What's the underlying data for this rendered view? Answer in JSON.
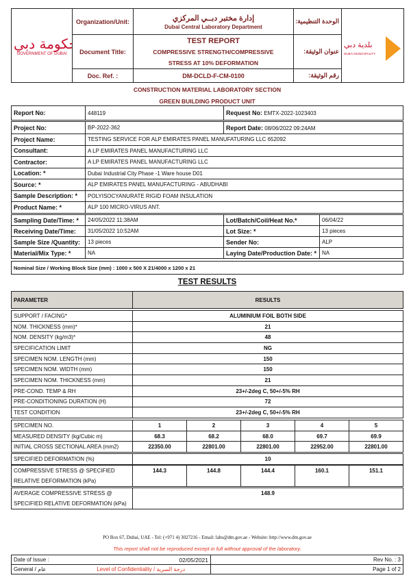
{
  "header": {
    "gov_logo_text": "GOVERNMENT OF DUBAI",
    "dm_logo_ar": "بلدية دبي",
    "dm_logo_en": "DUBAI MUNICIPALITY",
    "org_label": "Organization/Unit:",
    "org_ar": "إدارة مختبر دبــي المركزي",
    "org_en": "Dubai Central Laboratory Department",
    "org_label_ar": "الوحدة التنظيمية:",
    "title_label": "Document Title:",
    "title_main": "TEST REPORT",
    "title_sub1": "COMPRESSIVE STRENGTH/COMPRESSIVE",
    "title_sub2": "STRESS AT 10% DEFORMATION",
    "title_label_ar": "عنوان الوثيقة:",
    "ref_label": "Doc. Ref. :",
    "ref_value": "DM-DCLD-F-CM-0100",
    "ref_label_ar": "رقم الوثيقة:"
  },
  "section": {
    "line1": "CONSTRUCTION MATERIAL LABORATORY SECTION",
    "line2": "GREEN BUILDING PRODUCT UNIT"
  },
  "info": {
    "report_no_label": "Report No:",
    "report_no": "448119",
    "request_no_label": "Request No:",
    "request_no": "EMTX-2022-1023403",
    "project_no_label": "Project No:",
    "project_no": "BP-2022-362",
    "report_date_label": "Report Date:",
    "report_date": "08/06/2022  09:24AM",
    "rows": [
      {
        "label": "Project Name:",
        "value": "TESTING SERVICE FOR ALP EMIRATES PANEL MANUFATURING LLC 652092"
      },
      {
        "label": "Consultant:",
        "value": "A LP EMIRATES PANEL MANUFACTURING LLC"
      },
      {
        "label": "Contractor:",
        "value": "A LP EMIRATES PANEL MANUFACTURING LLC"
      },
      {
        "label": "Location: *",
        "value": "Dubai Industrial City Phase -1 Ware house D01"
      },
      {
        "label": "Source: *",
        "value": "ALP EMIRATES PANEL MANUFACTURING - ABUDHABI"
      },
      {
        "label": "Sample Description: *",
        "value": "POLYISOCYANURATE RIGID FOAM INSULATION"
      },
      {
        "label": "Product Name: *",
        "value": "ALP 100 MICRO-VIRUS ANT."
      }
    ],
    "grid": [
      {
        "l1": "Sampling Date/Time: *",
        "v1": "24/05/2022  11:38AM",
        "l2": "Lot/Batch/Coil/Heat No.*",
        "v2": "06/04/22"
      },
      {
        "l1": "Receiving Date/Time:",
        "v1": "31/05/2022  10:52AM",
        "l2": "Lot Size: *",
        "v2": "13 pieces"
      },
      {
        "l1": "Sample Size /Quantity:",
        "v1": "13 pieces",
        "l2": "Sender No:",
        "v2": "ALP"
      },
      {
        "l1": "Material/Mix Type: *",
        "v1": "NA",
        "l2": "Laying Date/Production Date: *",
        "v2": "NA"
      }
    ],
    "nominal": "Nominal Size / Working Block Size (mm) : 1000 x 500 X 21/4000 x 1200 x 21"
  },
  "results": {
    "title": "TEST RESULTS",
    "param_header": "PARAMETER",
    "results_header": "RESULTS",
    "rows": [
      {
        "p": "SUPPORT / FACING*",
        "v": "ALUMINIUM FOIL BOTH SIDE"
      },
      {
        "p": "NOM. THICKNESS (mm)*",
        "v": "21"
      },
      {
        "p": "NOM. DENSITY (kg/m3)*",
        "v": "48"
      },
      {
        "p": "SPECIFICATION LIMIT",
        "v": "NG"
      },
      {
        "p": "SPECIMEN NOM. LENGTH (mm)",
        "v": "150"
      },
      {
        "p": "SPECIMEN NOM. WIDTH (mm)",
        "v": "150"
      },
      {
        "p": "SPECIMEN NOM. THICKNESS (mm)",
        "v": "21"
      },
      {
        "p": "PRE-COND. TEMP & RH",
        "v": "23+/-2deg C, 50+/-5% RH"
      },
      {
        "p": "PRE-CONDITIONING DURATION (H)",
        "v": "72"
      },
      {
        "p": "TEST CONDITION",
        "v": "23+/-2deg C, 50+/-5% RH"
      }
    ],
    "specimen": [
      {
        "p": "SPECIMEN NO.",
        "v": [
          "1",
          "2",
          "3",
          "4",
          "5"
        ]
      },
      {
        "p": "MEASURED DENSITY (kg/Cubic m)",
        "v": [
          "68.3",
          "68.2",
          "68.0",
          "69.7",
          "69.9"
        ]
      },
      {
        "p": "INITIAL CROSS SECTIONAL AREA (mm2)",
        "v": [
          "22350.00",
          "22801.00",
          "22801.00",
          "22952.00",
          "22801.00"
        ]
      }
    ],
    "deformation": {
      "p": "SPECIFIED DEFORMATION (%)",
      "v": "10"
    },
    "stress": {
      "p1": "COMPRESSIVE STRESS @ SPECIFIED",
      "p2": "RELATIVE DEFORMATION (kPa)",
      "v": [
        "144.3",
        "144.8",
        "144.4",
        "160.1",
        "151.1"
      ]
    },
    "average": {
      "p1": "AVERAGE COMPRESSIVE STRESS @",
      "p2": "SPECIFIED RELATIVE DEFORMATION (kPa)",
      "v": "148.9"
    }
  },
  "footer": {
    "address": "PO Box 67, Dubai, UAE - Tel: (+971 4) 3027216 - Email: labs@dm.gov.ae - Website: http://www.dm.gov.ae",
    "notice": "This report shall not be reproduced except in full without approval of the laboratory.",
    "issue_label": "Date of Issue :",
    "issue_date": "02/05/2021",
    "rev": "Rev No. : 3",
    "general": "General / عام",
    "confidentiality": "Level of Confidentiality  /  درجة السرية",
    "page": "Page 1 of 2"
  }
}
